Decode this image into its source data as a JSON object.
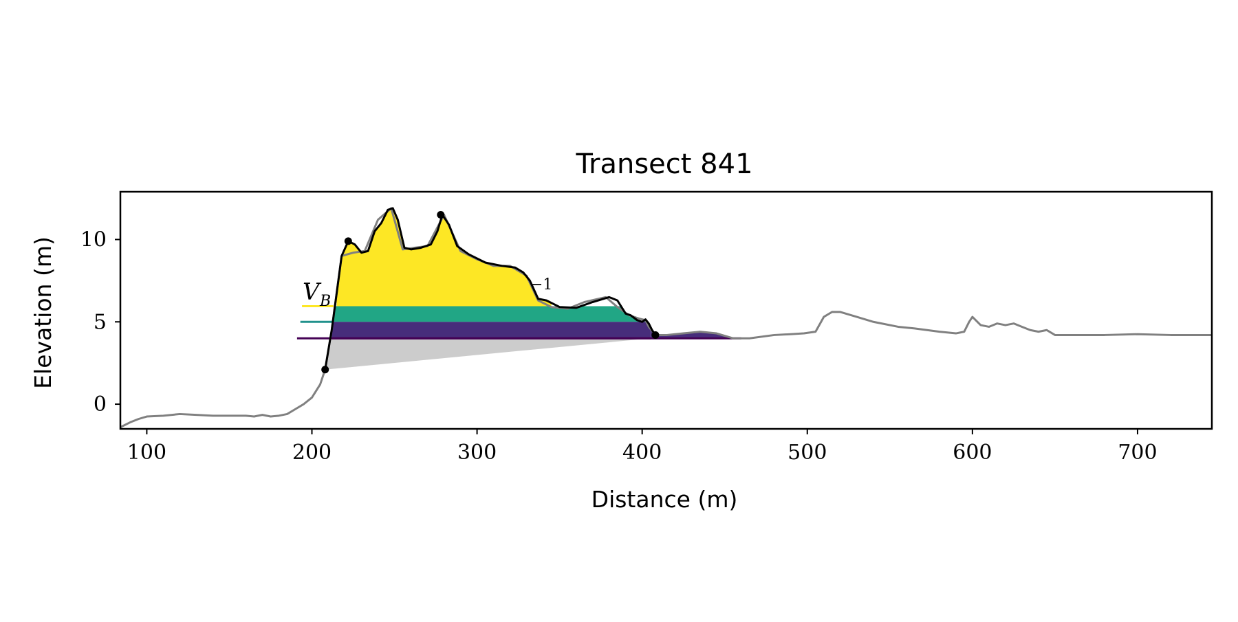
{
  "chart_data": {
    "type": "line",
    "title": "Transect 841",
    "xlabel": "Distance (m)",
    "ylabel": "Elevation (m)",
    "xlim": [
      84,
      745
    ],
    "ylim": [
      -1.5,
      12.9
    ],
    "x_ticks": [
      100,
      200,
      300,
      400,
      500,
      600,
      700
    ],
    "y_ticks": [
      0,
      5,
      10
    ],
    "grid": false,
    "legend": "none",
    "annotations": [
      {
        "text": "V",
        "subscript": "B"
      },
      {
        "text": "−1"
      }
    ],
    "colors": {
      "profile": "#808080",
      "dune_outline": "#000000",
      "band_top": "#fde725",
      "band_mid": "#21a685",
      "band_low": "#472d7b",
      "base_wedge": "#cccccc",
      "marker_line_top": "#fde725",
      "marker_line_mid": "#21918c",
      "marker_line_low": "#440154"
    },
    "series": [
      {
        "role": "full profile",
        "x": [
          84,
          90,
          95,
          100,
          110,
          120,
          130,
          140,
          150,
          160,
          165,
          170,
          175,
          180,
          185,
          190,
          195,
          200,
          205,
          208,
          212,
          218,
          225,
          232,
          240,
          248,
          255,
          262,
          270,
          280,
          290,
          300,
          310,
          320,
          330,
          337,
          345,
          355,
          365,
          378,
          385,
          392,
          398,
          402,
          404,
          408,
          415,
          425,
          435,
          445,
          455,
          465,
          480,
          490,
          498,
          505,
          510,
          515,
          520,
          530,
          540,
          555,
          565,
          580,
          590,
          595,
          598,
          600,
          605,
          610,
          615,
          620,
          625,
          630,
          635,
          640,
          645,
          650,
          665,
          680,
          700,
          720,
          735,
          745
        ],
        "y": [
          -1.4,
          -1.1,
          -0.9,
          -0.75,
          -0.7,
          -0.6,
          -0.65,
          -0.7,
          -0.7,
          -0.7,
          -0.75,
          -0.65,
          -0.75,
          -0.7,
          -0.6,
          -0.3,
          0.0,
          0.4,
          1.2,
          2.1,
          4.5,
          9.0,
          9.2,
          9.3,
          11.2,
          11.9,
          9.4,
          9.5,
          9.6,
          11.5,
          9.3,
          8.8,
          8.4,
          8.4,
          7.8,
          6.3,
          5.9,
          5.8,
          6.2,
          6.5,
          5.9,
          5.4,
          5.2,
          5.1,
          4.7,
          4.2,
          4.2,
          4.3,
          4.4,
          4.3,
          4.0,
          4.0,
          4.2,
          4.25,
          4.3,
          4.4,
          5.3,
          5.6,
          5.6,
          5.3,
          5.0,
          4.7,
          4.6,
          4.4,
          4.3,
          4.4,
          5.0,
          5.3,
          4.8,
          4.7,
          4.9,
          4.8,
          4.9,
          4.7,
          4.5,
          4.4,
          4.5,
          4.2,
          4.2,
          4.2,
          4.25,
          4.2,
          4.2,
          4.2
        ]
      }
    ],
    "dune_outline": {
      "x": [
        208,
        212,
        218,
        222,
        226,
        230,
        234,
        238,
        242,
        246,
        249,
        252,
        256,
        260,
        266,
        272,
        276,
        279,
        283,
        288,
        295,
        305,
        315,
        323,
        328,
        332,
        337,
        342,
        350,
        360,
        370,
        380,
        385,
        390,
        393,
        397,
        400,
        402,
        404,
        406,
        408
      ],
      "y": [
        2.1,
        4.5,
        9.0,
        9.9,
        9.7,
        9.2,
        9.3,
        10.5,
        11.0,
        11.8,
        11.9,
        11.2,
        9.5,
        9.4,
        9.5,
        9.7,
        10.5,
        11.5,
        10.9,
        9.6,
        9.1,
        8.6,
        8.4,
        8.3,
        8.0,
        7.5,
        6.4,
        6.3,
        5.9,
        5.85,
        6.2,
        6.5,
        6.3,
        5.5,
        5.4,
        5.1,
        5.0,
        5.15,
        4.9,
        4.5,
        4.2
      ]
    },
    "key_points": [
      {
        "x": 208,
        "y": 2.1
      },
      {
        "x": 222,
        "y": 9.9
      },
      {
        "x": 278,
        "y": 11.5
      },
      {
        "x": 408,
        "y": 4.2
      }
    ],
    "levels": [
      {
        "name": "top",
        "y": 5.95
      },
      {
        "name": "mid",
        "y": 5.0
      },
      {
        "name": "low",
        "y": 4.0
      }
    ],
    "shaded_bands": [
      {
        "lower": 5.95,
        "upper": "profile",
        "x_range": [
          215,
          345
        ],
        "color": "band_top"
      },
      {
        "lower": 5.0,
        "upper": 5.95,
        "x_range": [
          213,
          405
        ],
        "color": "band_mid"
      },
      {
        "lower": 4.0,
        "upper": 5.0,
        "x_range": [
          212,
          405
        ],
        "color": "band_low"
      },
      {
        "lower": 4.0,
        "upper": "profile",
        "x_range": [
          405,
          460
        ],
        "color": "band_low"
      }
    ],
    "base_wedge": {
      "points": [
        [
          208,
          2.1
        ],
        [
          212,
          4.0
        ],
        [
          405,
          4.0
        ]
      ]
    }
  }
}
